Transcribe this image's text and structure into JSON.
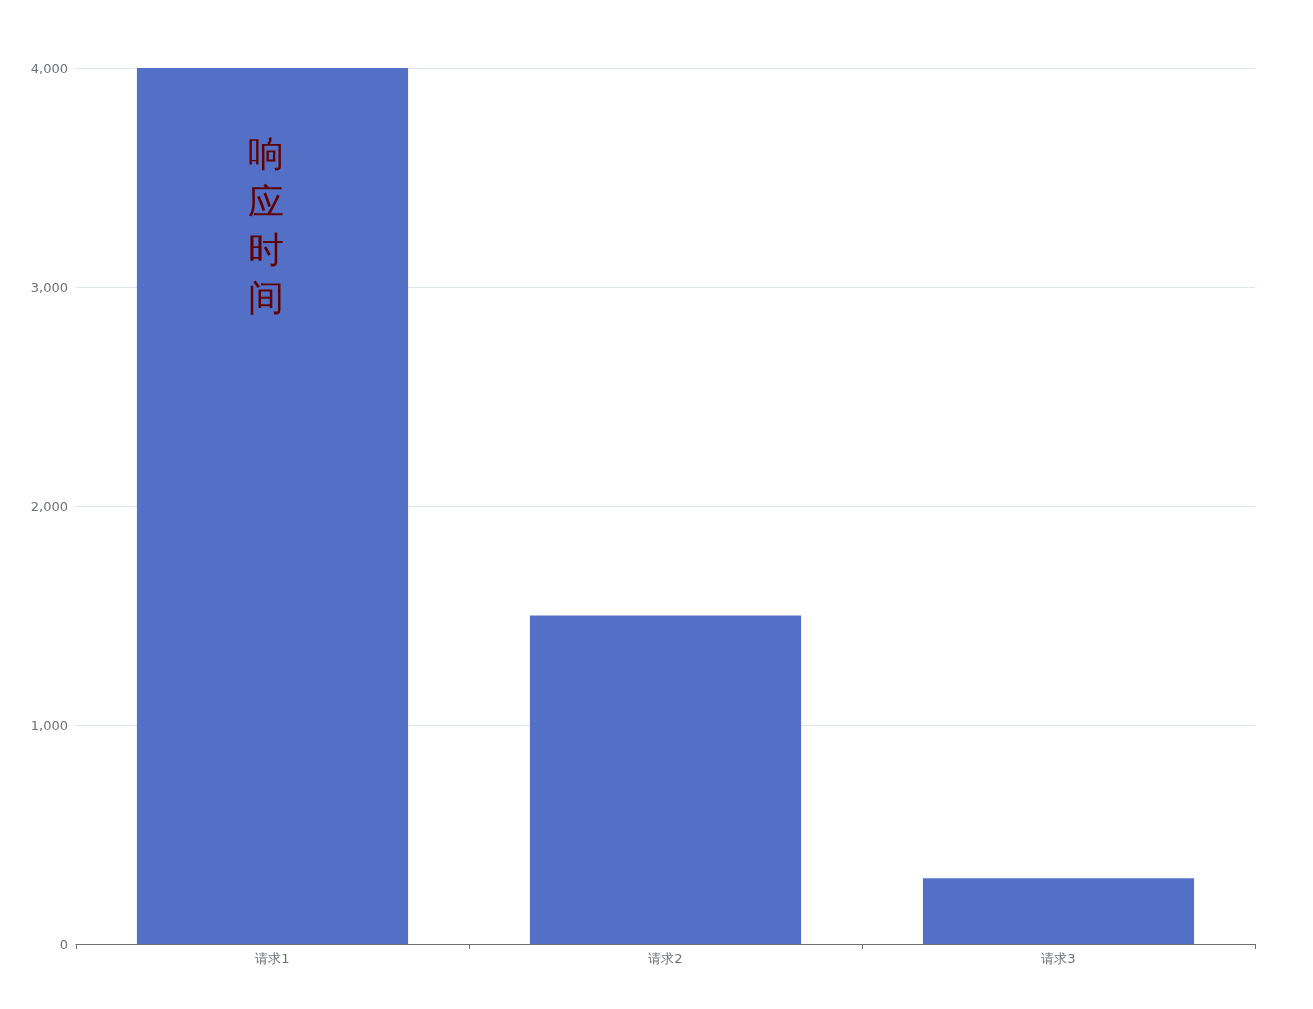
{
  "chart_data": {
    "type": "bar",
    "categories": [
      "请求1",
      "请求2",
      "请求3"
    ],
    "values": [
      4000,
      1500,
      300
    ],
    "color": "#5470c6",
    "ylim": [
      0,
      4000
    ],
    "yticks": [
      0,
      {
        "value": 1000,
        "label": "1,000"
      },
      {
        "value": 2000,
        "label": "2,000"
      },
      {
        "value": 3000,
        "label": "3,000"
      },
      {
        "value": 4000,
        "label": "4,000"
      }
    ],
    "grid": "y",
    "annotations": [
      "响应时间"
    ]
  }
}
